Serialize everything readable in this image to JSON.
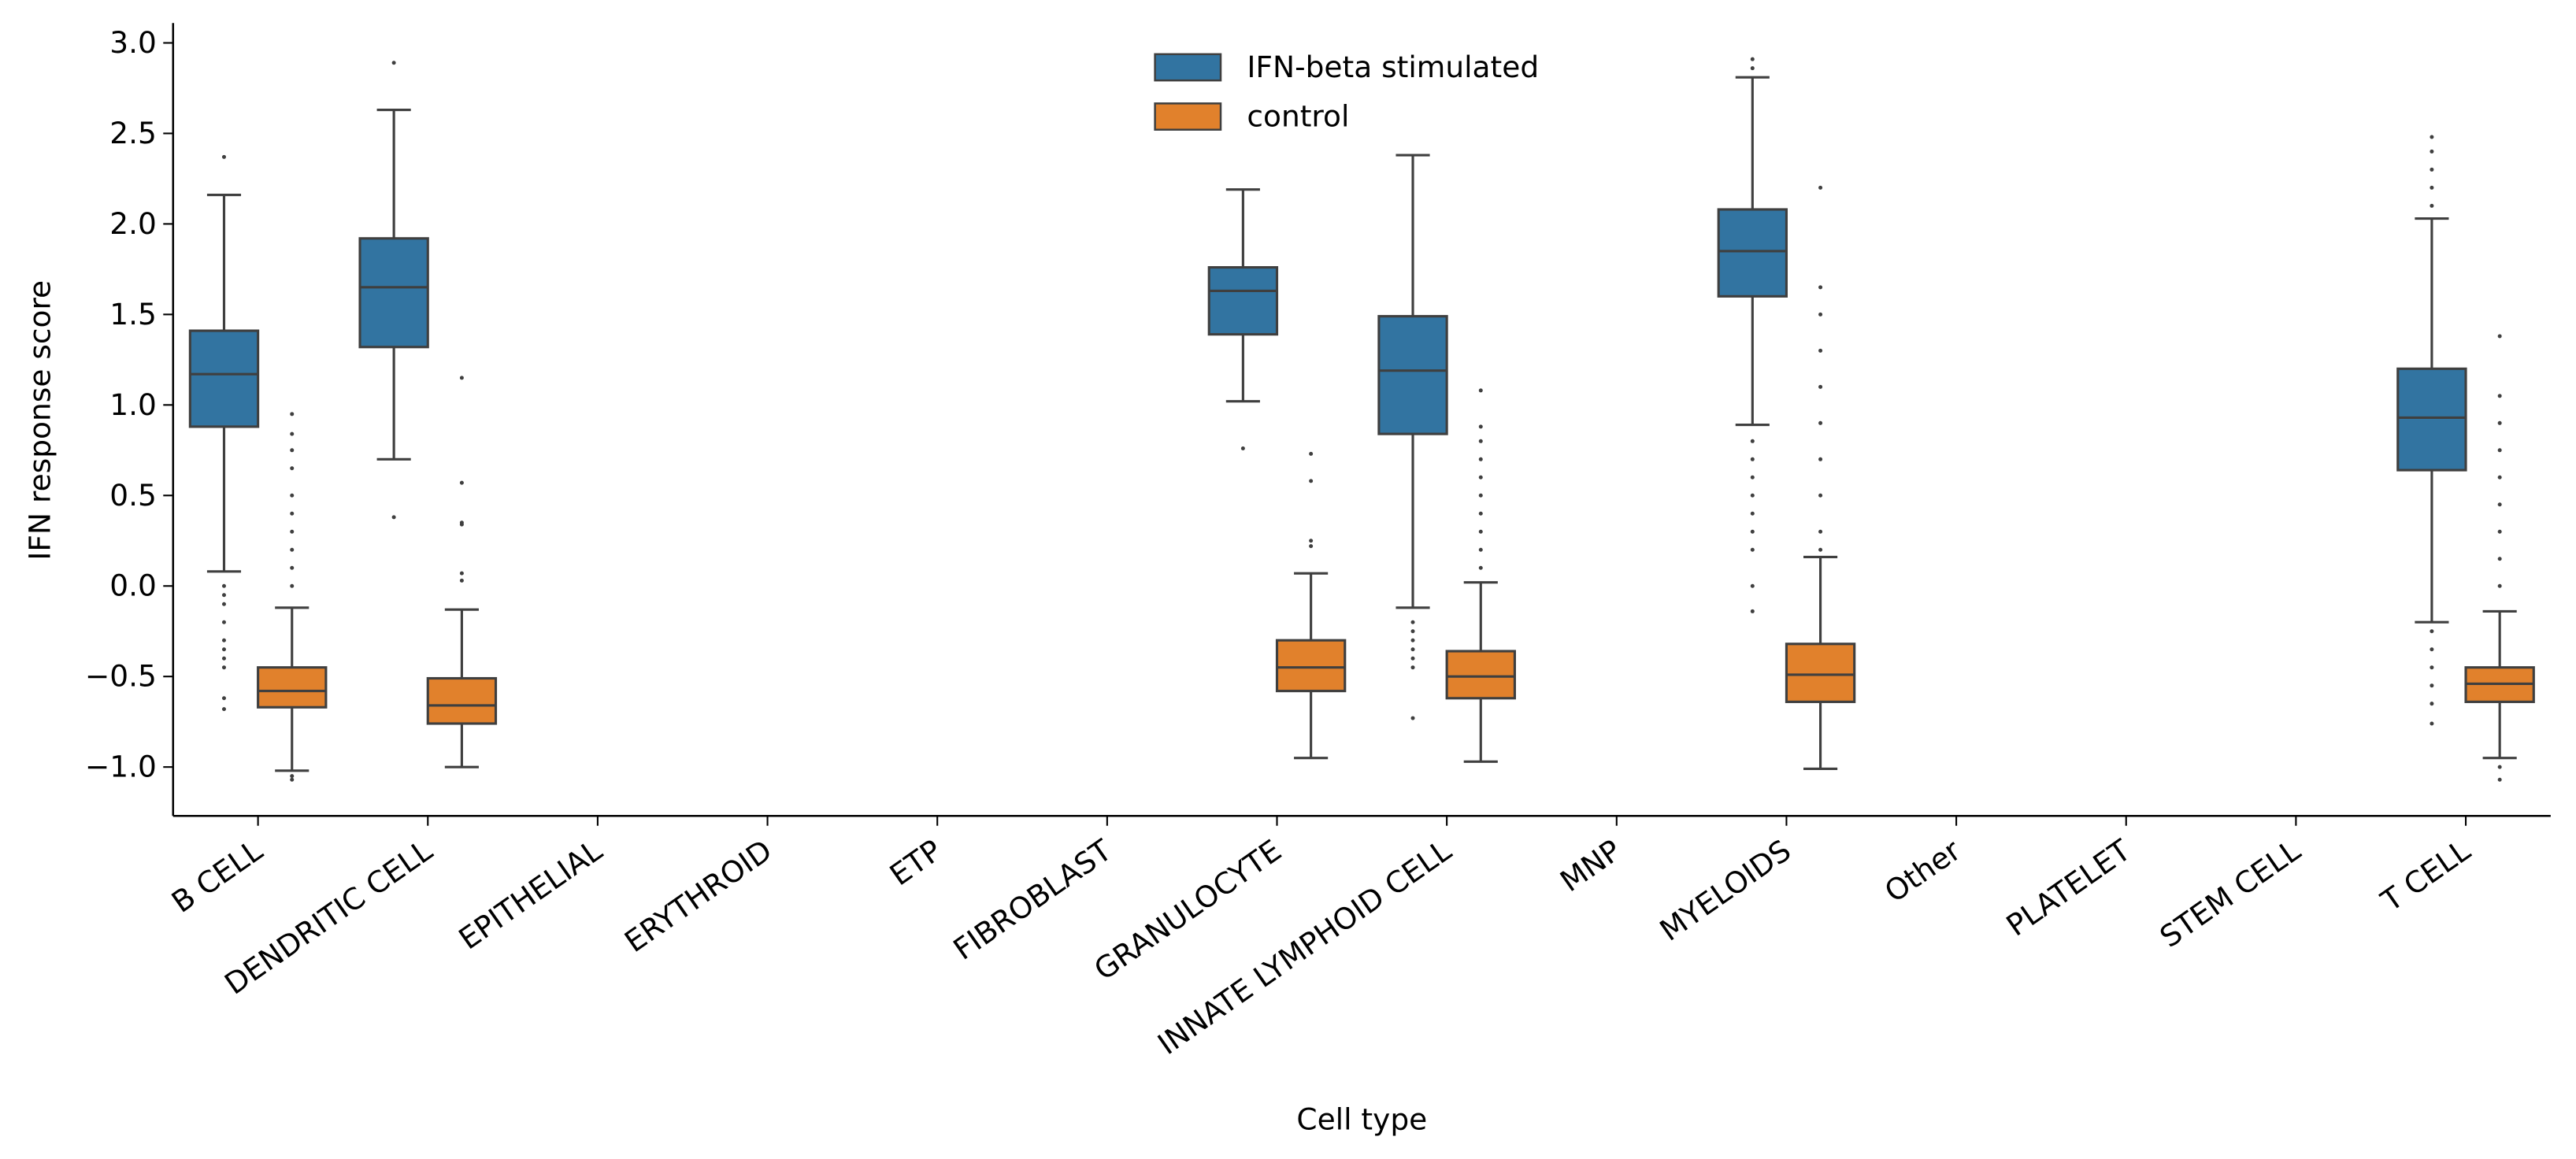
{
  "chart_data": {
    "type": "boxplot",
    "x_label": "Cell type",
    "y_label": "IFN response score",
    "categories": [
      "B CELL",
      "DENDRITIC CELL",
      "EPITHELIAL",
      "ERYTHROID",
      "ETP",
      "FIBROBLAST",
      "GRANULOCYTE",
      "INNATE LYMPHOID CELL",
      "MNP",
      "MYELOIDS",
      "Other",
      "PLATELET",
      "STEM CELL",
      "T CELL"
    ],
    "ylim": [
      -1.27,
      3.11
    ],
    "yticks": [
      {
        "value": -1,
        "label": "−1.0"
      },
      {
        "value": -0.5,
        "label": "−0.5"
      },
      {
        "value": 0,
        "label": "0.0"
      },
      {
        "value": 0.5,
        "label": "0.5"
      },
      {
        "value": 1,
        "label": "1.0"
      },
      {
        "value": 1.5,
        "label": "1.5"
      },
      {
        "value": 2,
        "label": "2.0"
      },
      {
        "value": 2.5,
        "label": "2.5"
      },
      {
        "value": 3,
        "label": "3.0"
      }
    ],
    "legend_position": "upper center",
    "line_color": "#3f3f3f",
    "series": [
      {
        "name": "IFN-beta stimulated",
        "color": "#3274a1",
        "whislo": [
          0.08,
          0.7,
          null,
          null,
          null,
          null,
          1.02,
          -0.12,
          null,
          0.89,
          null,
          null,
          null,
          -0.2
        ],
        "q1": [
          0.88,
          1.32,
          null,
          null,
          null,
          null,
          1.39,
          0.84,
          null,
          1.6,
          null,
          null,
          null,
          0.64
        ],
        "med": [
          1.17,
          1.65,
          null,
          null,
          null,
          null,
          1.63,
          1.19,
          null,
          1.85,
          null,
          null,
          null,
          0.93
        ],
        "q3": [
          1.41,
          1.92,
          null,
          null,
          null,
          null,
          1.76,
          1.49,
          null,
          2.08,
          null,
          null,
          null,
          1.2
        ],
        "whishi": [
          2.16,
          2.63,
          null,
          null,
          null,
          null,
          2.19,
          2.38,
          null,
          2.81,
          null,
          null,
          null,
          2.03
        ],
        "outliers": [
          [
            2.37,
            0.0,
            -0.05,
            -0.1,
            -0.2,
            -0.3,
            -0.35,
            -0.4,
            -0.45,
            -0.62,
            -0.68
          ],
          [
            2.89,
            0.38
          ],
          [],
          [],
          [],
          [],
          [
            0.76
          ],
          [
            -0.2,
            -0.25,
            -0.3,
            -0.35,
            -0.4,
            -0.45,
            -0.73
          ],
          [],
          [
            2.91,
            2.86,
            0.8,
            0.7,
            0.6,
            0.5,
            0.4,
            0.3,
            0.2,
            0.0,
            -0.14
          ],
          [],
          [],
          [],
          [
            2.48,
            2.4,
            2.3,
            2.2,
            2.1,
            -0.25,
            -0.35,
            -0.45,
            -0.55,
            -0.65,
            -0.76
          ]
        ]
      },
      {
        "name": "control",
        "color": "#e1812c",
        "whislo": [
          -1.02,
          -1.0,
          null,
          null,
          null,
          null,
          -0.95,
          -0.97,
          null,
          -1.01,
          null,
          null,
          null,
          -0.95
        ],
        "q1": [
          -0.67,
          -0.76,
          null,
          null,
          null,
          null,
          -0.58,
          -0.62,
          null,
          -0.64,
          null,
          null,
          null,
          -0.64
        ],
        "med": [
          -0.58,
          -0.66,
          null,
          null,
          null,
          null,
          -0.45,
          -0.5,
          null,
          -0.49,
          null,
          null,
          null,
          -0.54
        ],
        "q3": [
          -0.45,
          -0.51,
          null,
          null,
          null,
          null,
          -0.3,
          -0.36,
          null,
          -0.32,
          null,
          null,
          null,
          -0.45
        ],
        "whishi": [
          -0.12,
          -0.13,
          null,
          null,
          null,
          null,
          0.07,
          0.02,
          null,
          0.16,
          null,
          null,
          null,
          -0.14
        ],
        "outliers": [
          [
            0.95,
            0.84,
            0.75,
            0.65,
            0.5,
            0.4,
            0.3,
            0.2,
            0.1,
            0.0,
            -1.05,
            -1.07
          ],
          [
            1.15,
            0.57,
            0.35,
            0.34,
            0.07,
            0.03
          ],
          [],
          [],
          [],
          [],
          [
            0.73,
            0.58,
            0.25,
            0.22
          ],
          [
            1.08,
            0.88,
            0.8,
            0.7,
            0.6,
            0.5,
            0.4,
            0.3,
            0.2,
            0.1
          ],
          [],
          [
            2.2,
            1.65,
            1.5,
            1.3,
            1.1,
            0.9,
            0.7,
            0.5,
            0.3,
            0.2
          ],
          [],
          [],
          [],
          [
            1.38,
            1.05,
            0.9,
            0.75,
            0.6,
            0.45,
            0.3,
            0.15,
            0.0,
            -1.0,
            -1.07
          ]
        ]
      }
    ]
  }
}
